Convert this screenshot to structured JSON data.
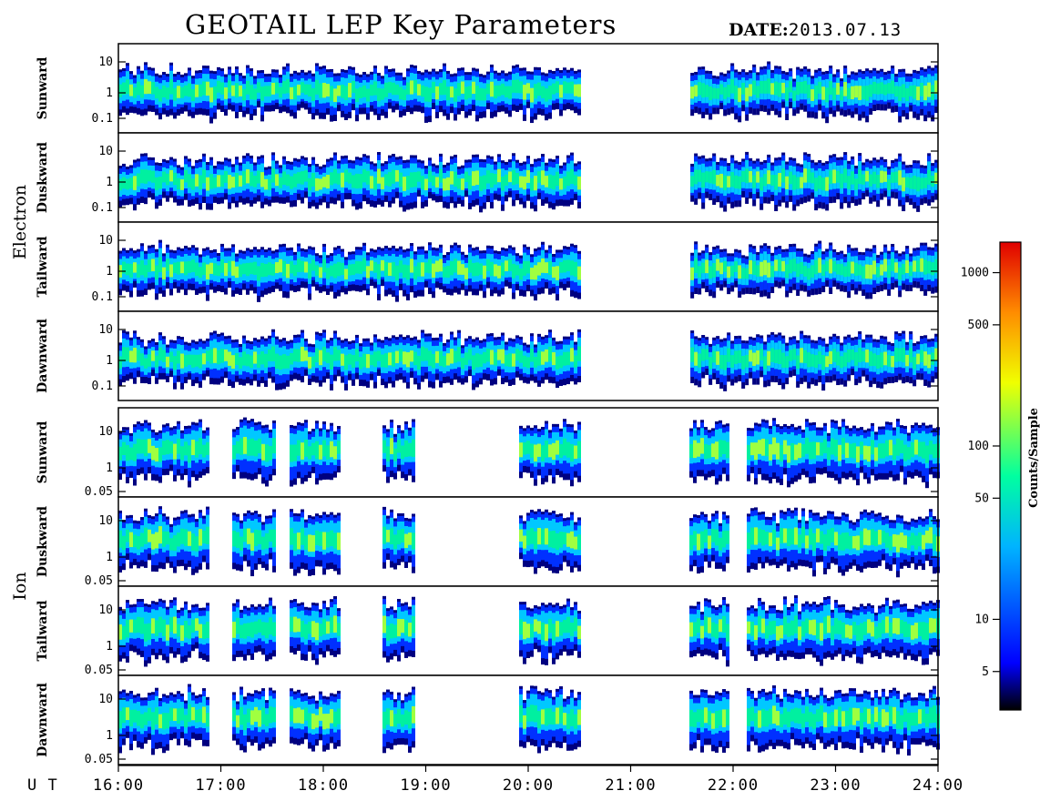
{
  "title": "GEOTAIL LEP Key Parameters",
  "date_label": "DATE:",
  "date_value": "2013.07.13",
  "ut_label": "U T",
  "colorbar_label": "Counts/Sample",
  "chart_data": {
    "type": "heatmap",
    "x_axis": {
      "range": [
        "16:00",
        "24:00"
      ],
      "tick_labels": [
        "16:00",
        "17:00",
        "18:00",
        "19:00",
        "20:00",
        "21:00",
        "22:00",
        "23:00",
        "24:00"
      ]
    },
    "data_gap": [
      "20:30",
      "21:35"
    ],
    "colorbar": {
      "scale": "log",
      "range": [
        3,
        1500
      ],
      "tick_labels": [
        "1000",
        "500",
        "100",
        "50",
        "10",
        "5"
      ],
      "tick_values": [
        1000,
        500,
        100,
        50,
        10,
        5
      ],
      "colors": [
        "#000000",
        "#0000ff",
        "#00b4ff",
        "#00ffa0",
        "#f0ff00",
        "#ff8c00",
        "#e00000"
      ]
    },
    "groups": [
      {
        "species": "Electron",
        "y_scale": "log",
        "y_tick_labels": [
          "10",
          "1",
          "0.1"
        ],
        "panels": [
          "Sunward",
          "Duskward",
          "Tailward",
          "Dawnward"
        ]
      },
      {
        "species": "Ion",
        "y_scale": "log",
        "y_tick_labels": [
          "10",
          "1",
          "0.05"
        ],
        "panels": [
          "Sunward",
          "Duskward",
          "Tailward",
          "Dawnward"
        ]
      }
    ]
  }
}
